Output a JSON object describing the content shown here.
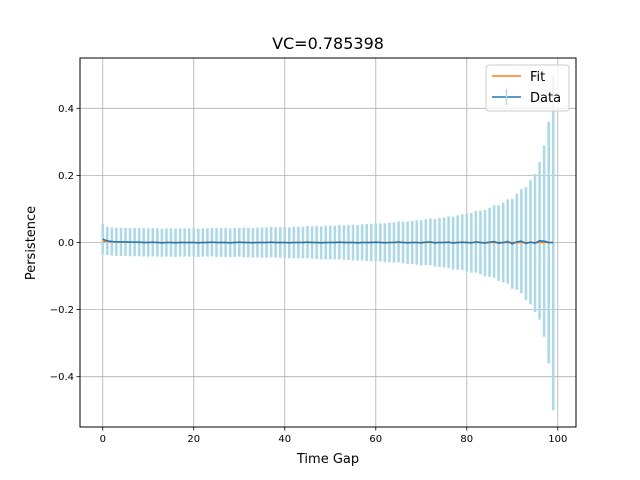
{
  "chart_data": {
    "type": "line",
    "title": "VC=0.785398",
    "xlabel": "Time Gap",
    "ylabel": "Persistence",
    "xlim": [
      -5,
      104
    ],
    "ylim": [
      -0.55,
      0.55
    ],
    "xticks": [
      0,
      20,
      40,
      60,
      80,
      100
    ],
    "yticks": [
      -0.4,
      -0.2,
      0.0,
      0.2,
      0.4
    ],
    "xtick_labels": [
      "0",
      "20",
      "40",
      "60",
      "80",
      "100"
    ],
    "ytick_labels": [
      "−0.4",
      "−0.2",
      "0.0",
      "0.2",
      "0.4"
    ],
    "grid": true,
    "legend": {
      "placement": "top-right",
      "entries": [
        "Fit",
        "Data"
      ]
    },
    "colors": {
      "fit": "#ff7f0e",
      "data": "#1f77b4",
      "errorbar": "#add8e6",
      "grid": "#b0b0b0"
    },
    "series": [
      {
        "name": "Data",
        "x": [
          0,
          1,
          2,
          3,
          4,
          5,
          6,
          7,
          8,
          9,
          10,
          11,
          12,
          13,
          14,
          15,
          16,
          17,
          18,
          19,
          20,
          21,
          22,
          23,
          24,
          25,
          26,
          27,
          28,
          29,
          30,
          31,
          32,
          33,
          34,
          35,
          36,
          37,
          38,
          39,
          40,
          41,
          42,
          43,
          44,
          45,
          46,
          47,
          48,
          49,
          50,
          51,
          52,
          53,
          54,
          55,
          56,
          57,
          58,
          59,
          60,
          61,
          62,
          63,
          64,
          65,
          66,
          67,
          68,
          69,
          70,
          71,
          72,
          73,
          74,
          75,
          76,
          77,
          78,
          79,
          80,
          81,
          82,
          83,
          84,
          85,
          86,
          87,
          88,
          89,
          90,
          91,
          92,
          93,
          94,
          95,
          96,
          97,
          98,
          99
        ],
        "y": [
          0.01,
          0.005,
          0.003,
          0.002,
          0.002,
          0.002,
          0.001,
          0.001,
          0.001,
          0.0,
          0.0,
          0.001,
          0.0,
          -0.001,
          0.0,
          0.0,
          -0.001,
          0.0,
          0.0,
          0.0,
          0.0,
          -0.001,
          0.0,
          0.0,
          0.001,
          0.0,
          0.0,
          0.0,
          -0.001,
          0.0,
          0.001,
          0.0,
          0.0,
          -0.001,
          0.0,
          0.0,
          0.0,
          0.001,
          0.0,
          0.0,
          0.0,
          -0.001,
          0.0,
          0.0,
          0.0,
          0.001,
          0.0,
          0.0,
          -0.001,
          0.0,
          0.0,
          0.0,
          0.001,
          0.0,
          0.0,
          0.0,
          -0.001,
          0.0,
          0.0,
          0.0,
          0.001,
          0.0,
          -0.001,
          0.0,
          0.0,
          0.002,
          0.0,
          -0.001,
          0.0,
          0.0,
          -0.001,
          0.001,
          0.002,
          -0.001,
          0.0,
          0.0,
          0.001,
          -0.002,
          0.0,
          0.001,
          0.0,
          -0.001,
          0.002,
          0.0,
          -0.002,
          0.001,
          0.003,
          -0.002,
          0.0,
          0.003,
          -0.004,
          0.002,
          0.004,
          -0.003,
          0.001,
          -0.002,
          0.005,
          0.004,
          0.0,
          0.0
        ],
        "yerr": [
          0.045,
          0.042,
          0.042,
          0.042,
          0.042,
          0.042,
          0.042,
          0.042,
          0.042,
          0.042,
          0.042,
          0.042,
          0.042,
          0.042,
          0.042,
          0.042,
          0.042,
          0.042,
          0.042,
          0.042,
          0.042,
          0.042,
          0.042,
          0.042,
          0.042,
          0.043,
          0.043,
          0.043,
          0.043,
          0.043,
          0.043,
          0.044,
          0.044,
          0.044,
          0.044,
          0.045,
          0.045,
          0.045,
          0.045,
          0.046,
          0.046,
          0.046,
          0.047,
          0.047,
          0.047,
          0.048,
          0.048,
          0.049,
          0.049,
          0.05,
          0.05,
          0.05,
          0.051,
          0.051,
          0.052,
          0.053,
          0.053,
          0.054,
          0.055,
          0.056,
          0.056,
          0.057,
          0.058,
          0.059,
          0.06,
          0.061,
          0.062,
          0.063,
          0.064,
          0.066,
          0.067,
          0.068,
          0.07,
          0.071,
          0.073,
          0.075,
          0.077,
          0.079,
          0.081,
          0.083,
          0.086,
          0.089,
          0.092,
          0.095,
          0.099,
          0.103,
          0.108,
          0.113,
          0.119,
          0.126,
          0.134,
          0.143,
          0.155,
          0.168,
          0.185,
          0.206,
          0.235,
          0.285,
          0.36,
          0.5
        ]
      },
      {
        "name": "Fit",
        "x": [
          0,
          2,
          5,
          10,
          20,
          40,
          60,
          80,
          99
        ],
        "y": [
          0.004,
          0.002,
          0.001,
          0.0,
          0.0,
          0.0,
          0.0,
          0.0,
          0.0
        ]
      }
    ]
  }
}
